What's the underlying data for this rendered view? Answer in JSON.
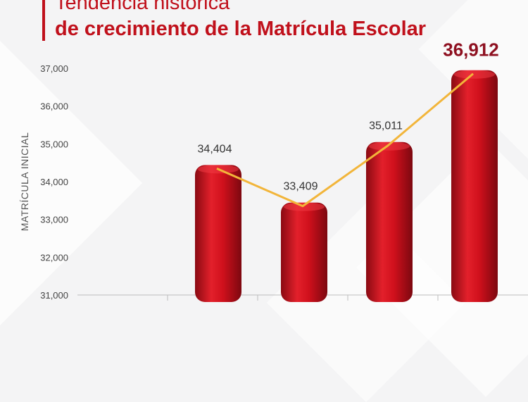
{
  "header": {
    "title_line1": "Tendencia histórica",
    "title_line2": "de crecimiento de la Matrícula Escolar"
  },
  "chart_data": {
    "type": "bar",
    "categories": [
      "",
      "",
      "",
      ""
    ],
    "values": [
      34404,
      33409,
      35011,
      36912
    ],
    "value_labels": [
      "34,404",
      "33,409",
      "35,011",
      "36,912"
    ],
    "title": "Tendencia histórica de crecimiento de la Matrícula Escolar",
    "xlabel": "",
    "ylabel": "MATRÍCULA INICIAL",
    "ylim": [
      31000,
      37000
    ],
    "yticks": [
      31000,
      32000,
      33000,
      34000,
      35000,
      36000,
      37000
    ],
    "ytick_labels": [
      "31,000",
      "32,000",
      "33,000",
      "34,000",
      "35,000",
      "36,000",
      "37,000"
    ],
    "grid": false,
    "trend_line": true,
    "colors": {
      "bar": "#d0101c",
      "trend": "#f2b53a",
      "title": "#c0101b",
      "highlight_label": "#8e1020",
      "label": "#333333",
      "axis_text": "#444444"
    }
  }
}
